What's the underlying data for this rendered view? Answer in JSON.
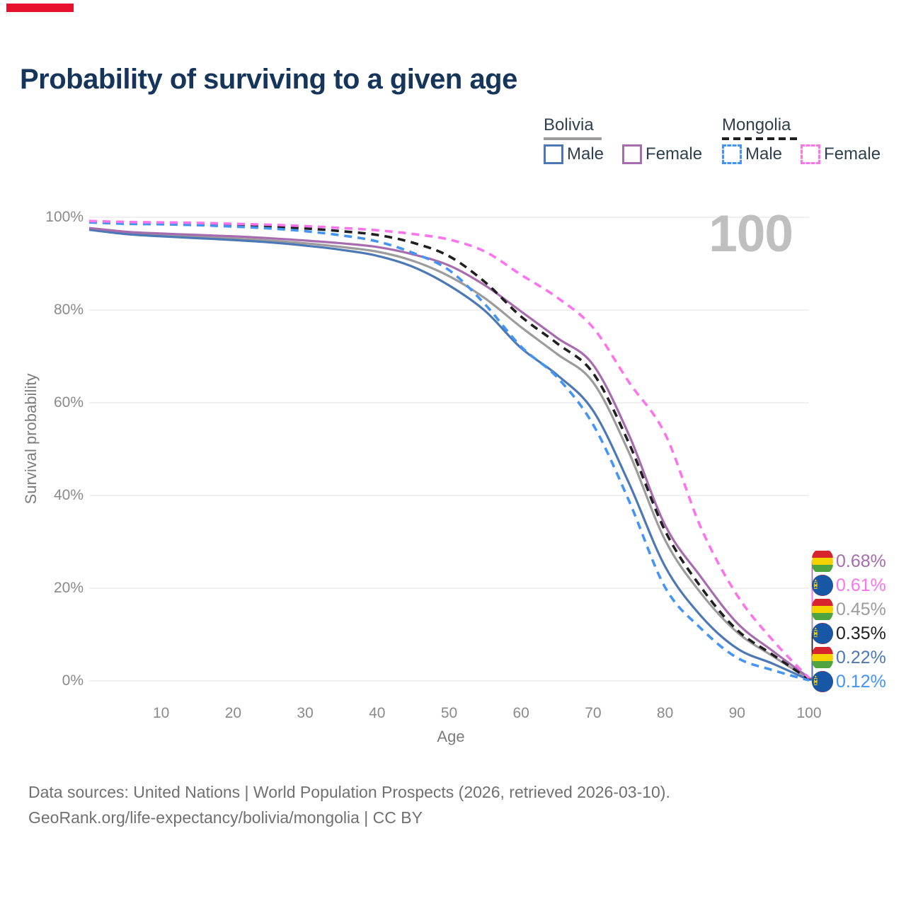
{
  "page": {
    "title": "Probability of surviving to a given age",
    "watermark": "100",
    "footer_line1": "Data sources: United Nations | World Population Prospects (2026, retrieved 2026-03-10).",
    "footer_line2": "GeoRank.org/life-expectancy/bolivia/mongolia | CC BY"
  },
  "legend": {
    "groups": [
      {
        "label": "Bolivia",
        "underline_style": "solid",
        "underline_color": "#9c9c9c",
        "items": [
          {
            "label": "Male",
            "color": "#4c78b5",
            "dashed": false
          },
          {
            "label": "Female",
            "color": "#a76cae",
            "dashed": false
          }
        ]
      },
      {
        "label": "Mongolia",
        "underline_style": "dashed",
        "underline_color": "#1f1f1f",
        "items": [
          {
            "label": "Male",
            "color": "#4494f4",
            "dashed": true
          },
          {
            "label": "Female",
            "color": "#fb74ec",
            "dashed": true
          }
        ]
      }
    ]
  },
  "axes": {
    "x": {
      "label": "Age",
      "ticks": [
        "10",
        "20",
        "30",
        "40",
        "50",
        "60",
        "70",
        "80",
        "90",
        "100"
      ]
    },
    "y": {
      "label": "Survival probability",
      "ticks": [
        "100%",
        "80%",
        "60%",
        "40%",
        "20%",
        "0%"
      ]
    }
  },
  "end_labels": [
    {
      "value": "0.68%",
      "series": "Bolivia Female",
      "flag": "bolivia",
      "color": "#a76cae"
    },
    {
      "value": "0.61%",
      "series": "Mongolia Female",
      "flag": "mongolia",
      "color": "#fb74ec"
    },
    {
      "value": "0.45%",
      "series": "Bolivia Both sexes",
      "flag": "bolivia",
      "color": "#9c9c9c"
    },
    {
      "value": "0.35%",
      "series": "Mongolia Both sexes",
      "flag": "mongolia",
      "color": "#1f1f1f"
    },
    {
      "value": "0.22%",
      "series": "Bolivia Male",
      "flag": "bolivia",
      "color": "#4c78b5"
    },
    {
      "value": "0.12%",
      "series": "Mongolia Male",
      "flag": "mongolia",
      "color": "#4494f4"
    }
  ],
  "flag_colors": {
    "bolivia": {
      "red": "#d8252d",
      "yellow": "#f5d300",
      "green": "#4fa43f"
    },
    "mongolia": {
      "red": "#b01e35",
      "blue": "#1857a6",
      "soyombo": "#f9cf02"
    }
  },
  "chart_data": {
    "type": "line",
    "title": "Probability of surviving to a given age",
    "xlabel": "Age",
    "ylabel": "Survival probability",
    "xlim": [
      0,
      100
    ],
    "ylim": [
      0,
      100
    ],
    "grid": "horizontal-only",
    "grid_values": [
      0,
      20,
      40,
      60,
      80,
      100
    ],
    "grid_color": "#e7e7e7",
    "legend_position": "top-right",
    "hover_age": 100,
    "x": [
      0,
      5,
      10,
      15,
      20,
      25,
      30,
      35,
      40,
      45,
      50,
      55,
      60,
      65,
      70,
      75,
      80,
      85,
      90,
      95,
      100
    ],
    "series": [
      {
        "name": "Bolivia Both sexes",
        "country": "Bolivia",
        "sex": "Both sexes",
        "style": "solid",
        "color": "#9c9c9c",
        "end_label": "0.45%",
        "values": [
          97.5,
          96.6,
          96.2,
          95.8,
          95.4,
          95.0,
          94.4,
          93.6,
          92.6,
          90.6,
          87.3,
          82.5,
          76.3,
          70.5,
          64.4,
          49.2,
          30.4,
          18.9,
          10.5,
          5.3,
          0.45
        ]
      },
      {
        "name": "Bolivia Male",
        "country": "Bolivia",
        "sex": "Male",
        "style": "solid",
        "color": "#4c78b5",
        "end_label": "0.22%",
        "values": [
          97.3,
          96.4,
          95.9,
          95.5,
          95.1,
          94.6,
          93.9,
          93.0,
          91.7,
          89.3,
          85.3,
          79.8,
          71.8,
          66.0,
          58.3,
          42.6,
          24.7,
          14.0,
          7.0,
          3.7,
          0.22
        ]
      },
      {
        "name": "Bolivia Female",
        "country": "Bolivia",
        "sex": "Female",
        "style": "solid",
        "color": "#a76cae",
        "end_label": "0.68%",
        "values": [
          97.7,
          96.9,
          96.5,
          96.2,
          95.9,
          95.5,
          95.0,
          94.4,
          93.6,
          92.0,
          89.6,
          85.3,
          79.7,
          74.0,
          68.2,
          53.0,
          33.6,
          22.4,
          12.5,
          6.4,
          0.68
        ]
      },
      {
        "name": "Mongolia Both sexes",
        "country": "Mongolia",
        "sex": "Both sexes",
        "style": "dashed",
        "color": "#1f1f1f",
        "end_label": "0.35%",
        "values": [
          99.0,
          98.8,
          98.7,
          98.5,
          98.3,
          98.0,
          97.6,
          97.0,
          96.2,
          94.5,
          91.6,
          86.0,
          78.6,
          72.8,
          66.4,
          51.2,
          32.4,
          20.2,
          11.0,
          5.6,
          0.35
        ]
      },
      {
        "name": "Mongolia Male",
        "country": "Mongolia",
        "sex": "Male",
        "style": "dashed",
        "color": "#4494f4",
        "end_label": "0.12%",
        "values": [
          98.9,
          98.6,
          98.5,
          98.3,
          98.0,
          97.6,
          97.0,
          96.1,
          94.8,
          92.3,
          88.6,
          81.2,
          72.1,
          65.5,
          55.3,
          38.8,
          20.2,
          11.3,
          5.0,
          2.3,
          0.12
        ]
      },
      {
        "name": "Mongolia Female",
        "country": "Mongolia",
        "sex": "Female",
        "style": "dashed",
        "color": "#fb74ec",
        "end_label": "0.61%",
        "values": [
          99.2,
          99.0,
          98.9,
          98.8,
          98.6,
          98.4,
          98.1,
          97.7,
          97.2,
          96.4,
          95.2,
          92.6,
          87.6,
          82.7,
          76.2,
          64.4,
          53.3,
          33.0,
          18.5,
          8.7,
          0.61
        ]
      }
    ]
  }
}
